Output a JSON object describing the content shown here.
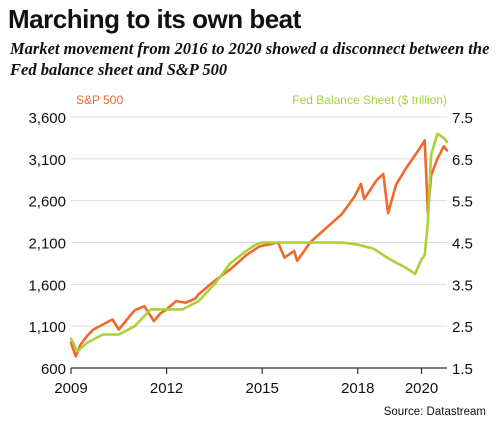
{
  "title": "Marching to its own beat",
  "subtitle": "Market movement from 2016 to 2020 showed a disconnect between the Fed balance sheet and S&P 500",
  "source": "Source: Datastream",
  "chart_data": {
    "type": "line",
    "x_ticks": [
      "2009",
      "2012",
      "2015",
      "2018",
      "2020"
    ],
    "xlim": [
      2009,
      2020.8
    ],
    "left_axis": {
      "ylim": [
        600,
        3600
      ],
      "ticks": [
        "600",
        "1,100",
        "1,600",
        "2,100",
        "2,600",
        "3,100",
        "3,600"
      ],
      "tick_values": [
        600,
        1100,
        1600,
        2100,
        2600,
        3100,
        3600
      ]
    },
    "right_axis": {
      "ylim": [
        1.5,
        7.5
      ],
      "ticks": [
        "1.5",
        "2.5",
        "3.5",
        "4.5",
        "5.5",
        "6.5",
        "7.5"
      ],
      "tick_values": [
        1.5,
        2.5,
        3.5,
        4.5,
        5.5,
        6.5,
        7.5
      ]
    },
    "colors": {
      "sp500": "#ee6a2c",
      "fed": "#a8d13a",
      "axis": "#333333"
    },
    "series": [
      {
        "name": "S&P 500",
        "axis": "left",
        "x": [
          2009.0,
          2009.15,
          2009.3,
          2009.5,
          2009.7,
          2010.0,
          2010.3,
          2010.5,
          2010.8,
          2011.0,
          2011.3,
          2011.6,
          2011.8,
          2012.0,
          2012.3,
          2012.6,
          2012.9,
          2013.0,
          2013.5,
          2014.0,
          2014.5,
          2014.9,
          2015.0,
          2015.5,
          2015.7,
          2016.0,
          2016.1,
          2016.5,
          2017.0,
          2017.5,
          2017.9,
          2018.1,
          2018.2,
          2018.6,
          2018.8,
          2018.95,
          2019.2,
          2019.5,
          2019.9,
          2020.1,
          2020.2,
          2020.3,
          2020.5,
          2020.7,
          2020.8
        ],
        "values": [
          900,
          740,
          880,
          980,
          1060,
          1120,
          1180,
          1060,
          1200,
          1290,
          1340,
          1160,
          1250,
          1300,
          1400,
          1380,
          1430,
          1480,
          1640,
          1780,
          1950,
          2050,
          2060,
          2100,
          1920,
          2000,
          1880,
          2100,
          2270,
          2440,
          2650,
          2800,
          2620,
          2850,
          2920,
          2450,
          2790,
          2980,
          3200,
          3320,
          2450,
          2900,
          3100,
          3250,
          3200
        ]
      },
      {
        "name": "Fed Balance Sheet ($ trillion)",
        "axis": "right",
        "x": [
          2009.0,
          2009.2,
          2009.5,
          2010.0,
          2010.5,
          2011.0,
          2011.5,
          2012.0,
          2012.5,
          2013.0,
          2013.5,
          2014.0,
          2014.5,
          2014.8,
          2015.0,
          2016.0,
          2017.0,
          2017.5,
          2018.0,
          2018.5,
          2019.0,
          2019.5,
          2019.8,
          2020.0,
          2020.1,
          2020.2,
          2020.3,
          2020.5,
          2020.7,
          2020.8
        ],
        "values": [
          2.2,
          1.9,
          2.1,
          2.3,
          2.3,
          2.5,
          2.9,
          2.9,
          2.9,
          3.1,
          3.5,
          4.0,
          4.3,
          4.45,
          4.5,
          4.5,
          4.5,
          4.5,
          4.45,
          4.35,
          4.1,
          3.9,
          3.75,
          4.1,
          4.2,
          5.0,
          6.6,
          7.1,
          7.0,
          6.9
        ]
      }
    ],
    "legend_placement": "top, one label per axis",
    "grid": true
  }
}
